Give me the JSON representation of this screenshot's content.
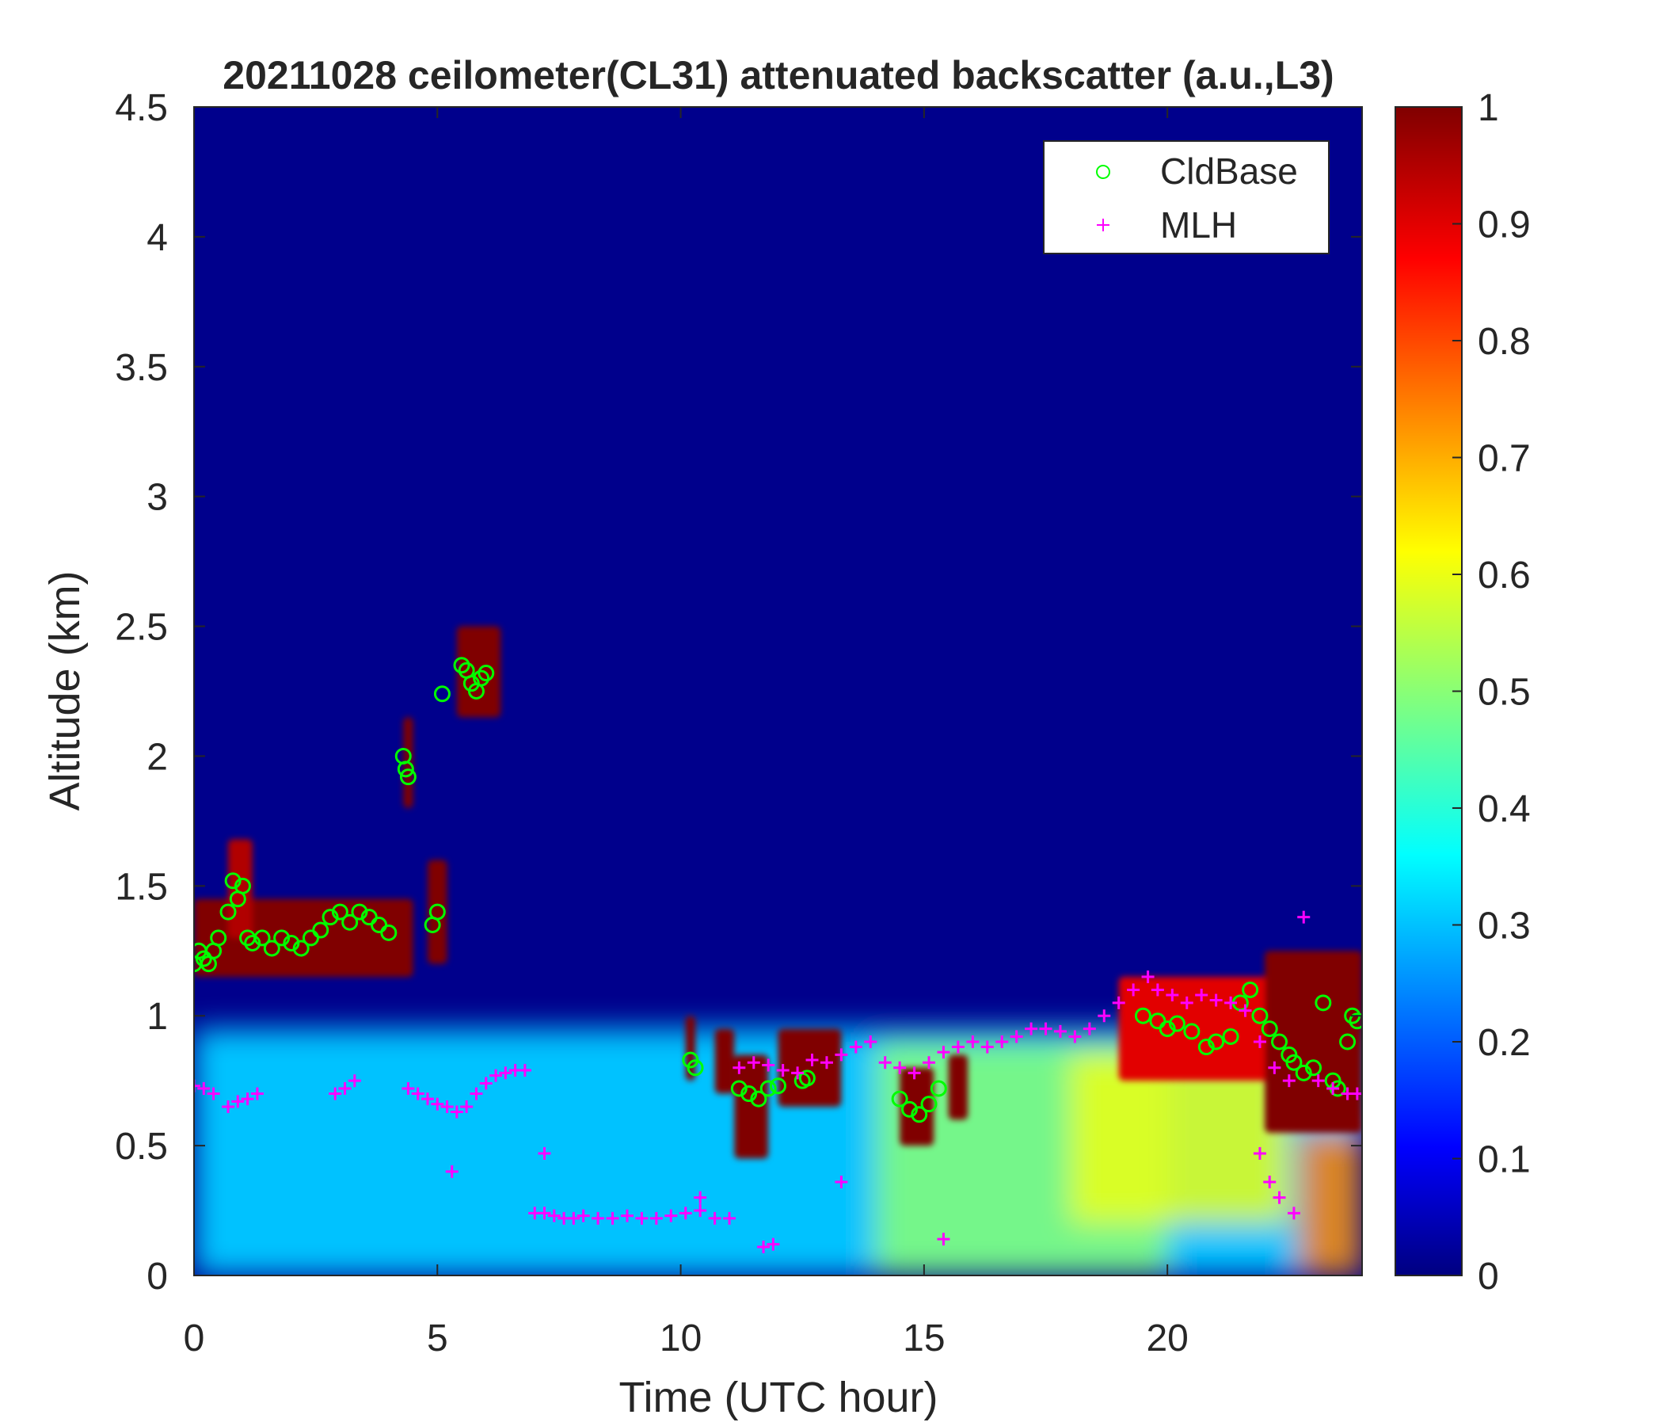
{
  "chart_data": {
    "type": "heatmap",
    "title": "20211028 ceilometer(CL31) attenuated backscatter (a.u.,L3)",
    "xlabel": "Time (UTC hour)",
    "ylabel": "Altitude (km)",
    "xlim": [
      0,
      24
    ],
    "ylim": [
      0,
      4.5
    ],
    "xticks": [
      0,
      5,
      10,
      15,
      20
    ],
    "xtick_labels": [
      "0",
      "5",
      "10",
      "15",
      "20"
    ],
    "yticks": [
      0,
      0.5,
      1,
      1.5,
      2,
      2.5,
      3,
      3.5,
      4,
      4.5
    ],
    "ytick_labels": [
      "0",
      "0.5",
      "1",
      "1.5",
      "2",
      "2.5",
      "3",
      "3.5",
      "4",
      "4.5"
    ],
    "colorbar": {
      "colormap": "jet",
      "range": [
        0,
        1
      ],
      "ticks": [
        0,
        0.1,
        0.2,
        0.3,
        0.4,
        0.5,
        0.6,
        0.7,
        0.8,
        0.9,
        1
      ],
      "tick_labels": [
        "0",
        "0.1",
        "0.2",
        "0.3",
        "0.4",
        "0.5",
        "0.6",
        "0.7",
        "0.8",
        "0.9",
        "1"
      ],
      "stops": [
        "#000080",
        "#0000ff",
        "#00ffff",
        "#ffff00",
        "#ff0000",
        "#800000"
      ]
    },
    "legend": {
      "placement": "top-right",
      "entries": [
        {
          "label": "CldBase",
          "marker": "circle",
          "color": "#00ff00"
        },
        {
          "label": "MLH",
          "marker": "plus",
          "color": "#ff00ff"
        }
      ]
    },
    "series": [
      {
        "name": "CldBase",
        "marker": "circle",
        "color": "#00ff00",
        "x": [
          0.0,
          0.1,
          0.2,
          0.3,
          0.4,
          0.5,
          0.7,
          0.8,
          0.9,
          1.0,
          1.1,
          1.2,
          1.4,
          1.6,
          1.8,
          2.0,
          2.2,
          2.4,
          2.6,
          2.8,
          3.0,
          3.2,
          3.4,
          3.6,
          3.8,
          4.0,
          4.3,
          4.35,
          4.4,
          4.9,
          5.0,
          5.1,
          5.5,
          5.6,
          5.7,
          5.8,
          5.9,
          6.0,
          10.2,
          10.3,
          11.2,
          11.4,
          11.6,
          11.8,
          12.0,
          12.5,
          12.6,
          14.5,
          14.7,
          14.9,
          15.1,
          15.3,
          19.5,
          19.8,
          20.0,
          20.2,
          20.5,
          20.8,
          21.0,
          21.3,
          21.5,
          21.7,
          21.9,
          22.1,
          22.3,
          22.5,
          22.6,
          22.8,
          23.0,
          23.2,
          23.4,
          23.5,
          23.7,
          23.8,
          23.9
        ],
        "y": [
          1.2,
          1.25,
          1.22,
          1.2,
          1.25,
          1.3,
          1.4,
          1.52,
          1.45,
          1.5,
          1.3,
          1.28,
          1.3,
          1.26,
          1.3,
          1.28,
          1.26,
          1.3,
          1.33,
          1.38,
          1.4,
          1.36,
          1.4,
          1.38,
          1.35,
          1.32,
          2.0,
          1.95,
          1.92,
          1.35,
          1.4,
          2.24,
          2.35,
          2.33,
          2.28,
          2.25,
          2.3,
          2.32,
          0.83,
          0.8,
          0.72,
          0.7,
          0.68,
          0.72,
          0.73,
          0.75,
          0.76,
          0.68,
          0.64,
          0.62,
          0.66,
          0.72,
          1.0,
          0.98,
          0.95,
          0.97,
          0.94,
          0.88,
          0.9,
          0.92,
          1.05,
          1.1,
          1.0,
          0.95,
          0.9,
          0.85,
          0.82,
          0.78,
          0.8,
          1.05,
          0.75,
          0.72,
          0.9,
          1.0,
          0.98
        ]
      },
      {
        "name": "MLH",
        "marker": "plus",
        "color": "#ff00ff",
        "x": [
          0.0,
          0.2,
          0.4,
          0.7,
          0.9,
          1.1,
          1.3,
          2.9,
          3.1,
          3.3,
          4.4,
          4.6,
          4.8,
          5.0,
          5.2,
          5.4,
          5.6,
          5.8,
          6.0,
          6.2,
          6.4,
          6.6,
          6.8,
          7.0,
          7.2,
          7.4,
          7.6,
          7.8,
          8.0,
          8.3,
          8.6,
          8.9,
          9.2,
          9.5,
          9.8,
          10.1,
          10.4,
          10.7,
          11.0,
          11.2,
          11.5,
          11.8,
          12.1,
          12.4,
          12.7,
          13.0,
          13.3,
          13.6,
          13.9,
          14.2,
          14.5,
          14.8,
          15.1,
          15.4,
          15.7,
          16.0,
          16.3,
          16.6,
          16.9,
          17.2,
          17.5,
          17.8,
          18.1,
          18.4,
          18.7,
          19.0,
          19.3,
          19.6,
          19.8,
          20.1,
          20.4,
          20.7,
          21.0,
          21.3,
          21.6,
          21.9,
          22.2,
          22.5,
          22.8,
          23.1,
          23.4,
          23.7,
          23.9,
          5.3,
          7.2,
          10.4,
          11.7,
          11.9,
          13.3,
          15.4,
          21.9,
          22.1,
          22.3,
          22.6
        ],
        "y": [
          0.73,
          0.72,
          0.7,
          0.65,
          0.67,
          0.68,
          0.7,
          0.7,
          0.72,
          0.75,
          0.72,
          0.7,
          0.68,
          0.66,
          0.65,
          0.63,
          0.65,
          0.7,
          0.74,
          0.77,
          0.78,
          0.79,
          0.79,
          0.24,
          0.24,
          0.23,
          0.22,
          0.22,
          0.23,
          0.22,
          0.22,
          0.23,
          0.22,
          0.22,
          0.23,
          0.24,
          0.25,
          0.22,
          0.22,
          0.8,
          0.82,
          0.81,
          0.79,
          0.78,
          0.83,
          0.82,
          0.85,
          0.88,
          0.9,
          0.82,
          0.8,
          0.78,
          0.82,
          0.86,
          0.88,
          0.9,
          0.88,
          0.9,
          0.92,
          0.95,
          0.95,
          0.94,
          0.92,
          0.95,
          1.0,
          1.05,
          1.1,
          1.15,
          1.1,
          1.08,
          1.05,
          1.08,
          1.06,
          1.05,
          1.02,
          0.9,
          0.8,
          0.75,
          1.38,
          0.75,
          0.72,
          0.7,
          0.7,
          0.4,
          0.47,
          0.3,
          0.11,
          0.12,
          0.36,
          0.14,
          0.47,
          0.36,
          0.3,
          0.24
        ]
      }
    ],
    "backscatter_field": {
      "description_of_features": "background ~0.03 above boundary layer; aerosol layer 0.2-0.6 below ~1 km; cloud patches saturating at 1",
      "cloud_patches": [
        {
          "t0": 0.0,
          "t1": 4.5,
          "z0": 1.15,
          "z1": 1.45,
          "value": 1
        },
        {
          "t0": 0.7,
          "t1": 1.2,
          "z0": 1.3,
          "z1": 1.68,
          "value": 0.95
        },
        {
          "t0": 4.3,
          "t1": 4.5,
          "z0": 1.8,
          "z1": 2.15,
          "value": 1
        },
        {
          "t0": 4.8,
          "t1": 5.2,
          "z0": 1.2,
          "z1": 1.6,
          "value": 1
        },
        {
          "t0": 5.4,
          "t1": 6.3,
          "z0": 2.15,
          "z1": 2.5,
          "value": 1
        },
        {
          "t0": 10.1,
          "t1": 10.3,
          "z0": 0.75,
          "z1": 1.0,
          "value": 1
        },
        {
          "t0": 10.7,
          "t1": 11.1,
          "z0": 0.7,
          "z1": 0.95,
          "value": 1
        },
        {
          "t0": 11.1,
          "t1": 11.8,
          "z0": 0.45,
          "z1": 0.85,
          "value": 1
        },
        {
          "t0": 12.0,
          "t1": 13.3,
          "z0": 0.65,
          "z1": 0.95,
          "value": 1
        },
        {
          "t0": 14.5,
          "t1": 15.2,
          "z0": 0.5,
          "z1": 0.8,
          "value": 1
        },
        {
          "t0": 15.5,
          "t1": 15.9,
          "z0": 0.6,
          "z1": 0.85,
          "value": 1
        },
        {
          "t0": 19.0,
          "t1": 22.8,
          "z0": 0.75,
          "z1": 1.15,
          "value": 0.9
        },
        {
          "t0": 22.0,
          "t1": 24.0,
          "z0": 0.55,
          "z1": 1.25,
          "value": 1
        }
      ],
      "aerosol_layer": [
        {
          "t0": 0.0,
          "t1": 24.0,
          "z0": 0.0,
          "z1": 0.95,
          "value": 0.3
        },
        {
          "t0": 14.0,
          "t1": 20.0,
          "z0": 0.0,
          "z1": 0.9,
          "value": 0.5
        },
        {
          "t0": 18.0,
          "t1": 22.5,
          "z0": 0.2,
          "z1": 0.85,
          "value": 0.6
        },
        {
          "t0": 22.7,
          "t1": 24.0,
          "z0": 0.0,
          "z1": 0.55,
          "value": 0.75
        }
      ]
    }
  }
}
